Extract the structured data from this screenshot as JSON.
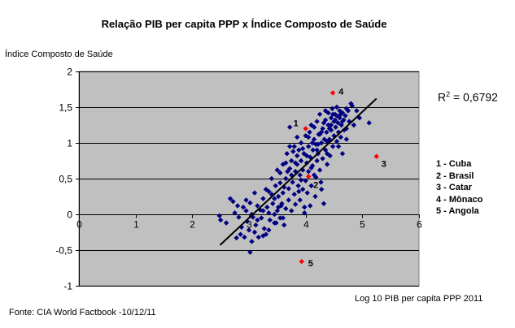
{
  "chart_data": {
    "type": "scatter",
    "title": "Relação PIB per capita PPP x Índice Composto de Saúde",
    "ylabel": "Índice Composto de Saúde",
    "xlabel": "Log 10 PIB per capita PPP 2011",
    "source": "Fonte: CIA World Factbook -10/12/11",
    "xlim": [
      0,
      6
    ],
    "ylim": [
      -1,
      2
    ],
    "x_ticks": [
      "0",
      "1",
      "2",
      "3",
      "4",
      "5",
      "6"
    ],
    "y_ticks": [
      "2",
      "1,5",
      "1",
      "0,5",
      "0",
      "-0,5",
      "-1"
    ],
    "grid": "horizontal",
    "plot_background": "#c0c0c0",
    "point_color": "#000080",
    "highlight_color": "#ff0000",
    "trendline": {
      "x": [
        2.49,
        5.25
      ],
      "y": [
        -0.43,
        1.62
      ],
      "r2_label": "R",
      "r2_exp": "2",
      "r2_value": " = 0,6792"
    },
    "highlighted": [
      {
        "label": "1",
        "name": "Cuba",
        "x": 4.0,
        "y": 1.2
      },
      {
        "label": "2",
        "name": "Brasil",
        "x": 4.05,
        "y": 0.53
      },
      {
        "label": "3",
        "name": "Catar",
        "x": 5.25,
        "y": 0.81
      },
      {
        "label": "4",
        "name": "Mônaco",
        "x": 4.48,
        "y": 1.7
      },
      {
        "label": "5",
        "name": "Angola",
        "x": 3.93,
        "y": -0.66
      }
    ],
    "legend": [
      "1 - Cuba",
      "2 - Brasil",
      "3 - Catar",
      "4 - Mônaco",
      "5 - Angola"
    ],
    "points": [
      [
        2.48,
        -0.02
      ],
      [
        2.5,
        -0.08
      ],
      [
        2.6,
        -0.12
      ],
      [
        2.67,
        0.22
      ],
      [
        2.72,
        0.18
      ],
      [
        2.75,
        0.02
      ],
      [
        2.78,
        -0.33
      ],
      [
        2.8,
        0.12
      ],
      [
        2.82,
        -0.04
      ],
      [
        2.85,
        -0.28
      ],
      [
        2.87,
        -0.18
      ],
      [
        2.9,
        0.1
      ],
      [
        2.92,
        -0.32
      ],
      [
        2.95,
        0.05
      ],
      [
        2.97,
        -0.1
      ],
      [
        3.0,
        -0.22
      ],
      [
        3.02,
        -0.53
      ],
      [
        3.02,
        0.16
      ],
      [
        3.05,
        -0.38
      ],
      [
        3.07,
        -0.04
      ],
      [
        3.1,
        -0.25
      ],
      [
        3.1,
        0.3
      ],
      [
        3.12,
        -0.15
      ],
      [
        3.15,
        0.12
      ],
      [
        3.17,
        -0.32
      ],
      [
        3.2,
        0.06
      ],
      [
        3.22,
        -0.05
      ],
      [
        3.25,
        0.22
      ],
      [
        3.27,
        -0.2
      ],
      [
        3.3,
        0.35
      ],
      [
        3.3,
        -0.28
      ],
      [
        3.32,
        0.1
      ],
      [
        3.35,
        0.02
      ],
      [
        3.37,
        -0.08
      ],
      [
        3.4,
        0.28
      ],
      [
        3.4,
        0.5
      ],
      [
        3.42,
        0.15
      ],
      [
        3.45,
        -0.12
      ],
      [
        3.47,
        0.4
      ],
      [
        3.5,
        0.05
      ],
      [
        3.5,
        0.62
      ],
      [
        3.52,
        0.25
      ],
      [
        3.55,
        -0.05
      ],
      [
        3.55,
        0.44
      ],
      [
        3.57,
        0.12
      ],
      [
        3.6,
        0.7
      ],
      [
        3.6,
        0.3
      ],
      [
        3.62,
        -0.15
      ],
      [
        3.65,
        0.5
      ],
      [
        3.65,
        0.08
      ],
      [
        3.67,
        0.85
      ],
      [
        3.7,
        0.36
      ],
      [
        3.7,
        0.2
      ],
      [
        3.72,
        0.64
      ],
      [
        3.72,
        1.22
      ],
      [
        3.75,
        0.05
      ],
      [
        3.75,
        0.75
      ],
      [
        3.77,
        0.45
      ],
      [
        3.8,
        0.95
      ],
      [
        3.8,
        0.28
      ],
      [
        3.82,
        0.6
      ],
      [
        3.82,
        0.14
      ],
      [
        3.85,
        1.08
      ],
      [
        3.85,
        0.7
      ],
      [
        3.87,
        0.4
      ],
      [
        3.88,
        0.9
      ],
      [
        3.9,
        0.55
      ],
      [
        3.9,
        0.2
      ],
      [
        3.92,
        1.0
      ],
      [
        3.92,
        0.75
      ],
      [
        3.95,
        0.35
      ],
      [
        3.95,
        0.62
      ],
      [
        3.97,
        0.85
      ],
      [
        3.98,
        0.1
      ],
      [
        4.0,
        1.1
      ],
      [
        4.0,
        0.47
      ],
      [
        4.02,
        0.72
      ],
      [
        4.03,
        0.3
      ],
      [
        4.05,
        0.95
      ],
      [
        4.05,
        0.6
      ],
      [
        4.07,
        1.15
      ],
      [
        4.08,
        0.8
      ],
      [
        4.1,
        0.4
      ],
      [
        4.1,
        1.25
      ],
      [
        4.12,
        0.68
      ],
      [
        4.13,
        0.9
      ],
      [
        4.15,
        1.05
      ],
      [
        4.15,
        0.55
      ],
      [
        4.17,
        0.25
      ],
      [
        4.18,
        0.98
      ],
      [
        4.2,
        1.3
      ],
      [
        4.2,
        0.75
      ],
      [
        4.22,
        0.85
      ],
      [
        4.23,
        1.12
      ],
      [
        4.25,
        0.62
      ],
      [
        4.25,
        1.4
      ],
      [
        4.27,
        0.45
      ],
      [
        4.28,
        1.0
      ],
      [
        4.3,
        1.2
      ],
      [
        4.3,
        0.78
      ],
      [
        4.32,
        0.15
      ],
      [
        4.33,
        1.05
      ],
      [
        4.35,
        1.32
      ],
      [
        4.35,
        0.9
      ],
      [
        4.37,
        1.15
      ],
      [
        4.38,
        0.7
      ],
      [
        4.4,
        1.25
      ],
      [
        4.4,
        1.42
      ],
      [
        4.42,
        1.05
      ],
      [
        4.43,
        0.82
      ],
      [
        4.45,
        1.35
      ],
      [
        4.45,
        1.18
      ],
      [
        4.47,
        1.48
      ],
      [
        4.48,
        0.95
      ],
      [
        4.5,
        1.3
      ],
      [
        4.5,
        1.1
      ],
      [
        4.52,
        1.4
      ],
      [
        4.53,
        1.22
      ],
      [
        4.55,
        1.02
      ],
      [
        4.55,
        1.5
      ],
      [
        4.57,
        1.28
      ],
      [
        4.58,
        1.15
      ],
      [
        4.6,
        1.45
      ],
      [
        4.6,
        1.35
      ],
      [
        4.62,
        1.08
      ],
      [
        4.63,
        1.25
      ],
      [
        4.65,
        1.42
      ],
      [
        4.65,
        0.85
      ],
      [
        4.67,
        1.32
      ],
      [
        4.68,
        1.18
      ],
      [
        4.7,
        1.38
      ],
      [
        4.72,
        1.05
      ],
      [
        4.75,
        1.45
      ],
      [
        4.77,
        1.3
      ],
      [
        4.8,
        1.55
      ],
      [
        4.82,
        1.52
      ],
      [
        4.85,
        1.25
      ],
      [
        4.9,
        1.45
      ],
      [
        4.95,
        1.35
      ],
      [
        5.12,
        1.28
      ],
      [
        3.48,
        -0.12
      ],
      [
        3.58,
        0.15
      ],
      [
        3.68,
        0.6
      ],
      [
        3.78,
        0.88
      ],
      [
        3.88,
        0.32
      ],
      [
        3.98,
        0.02
      ],
      [
        4.08,
        0.12
      ],
      [
        4.18,
        0.52
      ],
      [
        4.28,
        0.35
      ],
      [
        4.38,
        0.85
      ],
      [
        4.48,
        1.4
      ],
      [
        4.58,
        0.95
      ],
      [
        3.25,
        -0.3
      ],
      [
        3.35,
        -0.22
      ],
      [
        3.45,
        0.0
      ],
      [
        3.55,
        0.58
      ],
      [
        3.62,
        0.38
      ],
      [
        3.72,
        0.95
      ],
      [
        3.82,
        0.72
      ],
      [
        3.92,
        0.48
      ],
      [
        4.02,
        0.82
      ],
      [
        4.12,
        1.0
      ],
      [
        4.22,
        0.98
      ],
      [
        4.32,
        1.28
      ],
      [
        4.42,
        1.2
      ],
      [
        4.52,
        1.32
      ],
      [
        4.62,
        1.4
      ],
      [
        4.72,
        1.2
      ],
      [
        2.95,
        0.2
      ],
      [
        3.05,
        0.0
      ],
      [
        3.15,
        -0.08
      ],
      [
        3.25,
        0.05
      ],
      [
        3.35,
        0.32
      ],
      [
        3.45,
        0.22
      ],
      [
        3.52,
        0.1
      ],
      [
        3.6,
        -0.05
      ],
      [
        4.05,
        1.08
      ],
      [
        4.15,
        1.22
      ],
      [
        4.25,
        1.12
      ],
      [
        4.35,
        1.45
      ],
      [
        4.45,
        1.25
      ],
      [
        4.55,
        1.38
      ],
      [
        4.65,
        1.3
      ],
      [
        4.72,
        1.48
      ],
      [
        3.65,
        0.72
      ],
      [
        3.75,
        0.55
      ],
      [
        3.85,
        0.82
      ],
      [
        3.95,
        0.92
      ],
      [
        4.1,
        0.65
      ],
      [
        4.2,
        0.9
      ],
      [
        4.28,
        1.15
      ],
      [
        4.38,
        1.02
      ]
    ]
  }
}
